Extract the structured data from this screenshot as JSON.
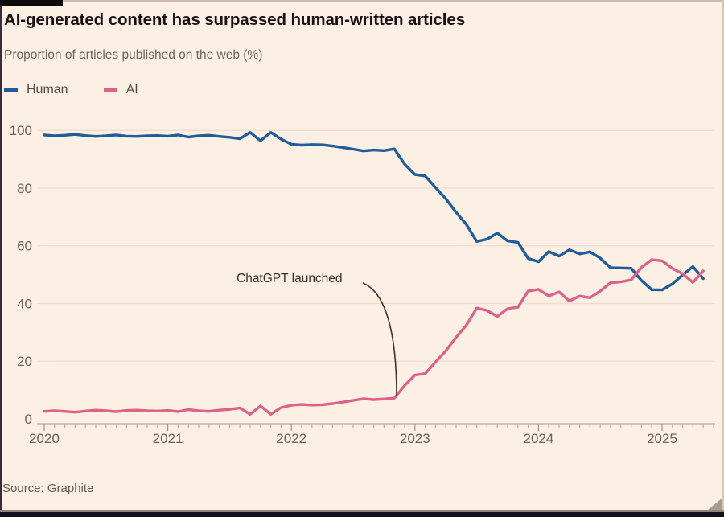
{
  "window": {
    "source_label": "Source: Graphite"
  },
  "header": {
    "title": "AI-generated content has surpassed human-written articles",
    "subtitle": "Proportion of articles published on the web (%)"
  },
  "legend": {
    "items": [
      {
        "label": "Human",
        "color": "#1f5c99"
      },
      {
        "label": "AI",
        "color": "#dd6289"
      }
    ]
  },
  "annotation": {
    "label": "ChatGPT launched"
  },
  "colors": {
    "background": "#fcefe3",
    "title_text": "#171113",
    "muted_text": "#6e6460",
    "tick_text": "#6e6157",
    "human_line": "#1f5c99",
    "ai_line": "#dd6289",
    "grid": "#f2dccf",
    "axis": "#bfa99b",
    "tick_minor": "#c4ad9e",
    "tick_major": "#a5907f",
    "annotation": "#3a332d",
    "bottom_bar": "#10131f"
  },
  "chart_data": {
    "type": "line",
    "title": "AI-generated content has surpassed human-written articles",
    "subtitle": "Proportion of articles published on the web (%)",
    "source": "Source: Graphite",
    "x_unit": "month",
    "xlabel": "",
    "ylabel": "Proportion of articles published on the web (%)",
    "ylim": [
      0,
      100
    ],
    "yticks": [
      0,
      20,
      40,
      60,
      80,
      100
    ],
    "xticks": [
      "2020",
      "2021",
      "2022",
      "2023",
      "2024",
      "2025"
    ],
    "grid": "horizontal-faint",
    "legend_position": "top-left",
    "x": [
      "2020-01",
      "2020-02",
      "2020-03",
      "2020-04",
      "2020-05",
      "2020-06",
      "2020-07",
      "2020-08",
      "2020-09",
      "2020-10",
      "2020-11",
      "2020-12",
      "2021-01",
      "2021-02",
      "2021-03",
      "2021-04",
      "2021-05",
      "2021-06",
      "2021-07",
      "2021-08",
      "2021-09",
      "2021-10",
      "2021-11",
      "2021-12",
      "2022-01",
      "2022-02",
      "2022-03",
      "2022-04",
      "2022-05",
      "2022-06",
      "2022-07",
      "2022-08",
      "2022-09",
      "2022-10",
      "2022-11",
      "2022-12",
      "2023-01",
      "2023-02",
      "2023-03",
      "2023-04",
      "2023-05",
      "2023-06",
      "2023-07",
      "2023-08",
      "2023-09",
      "2023-10",
      "2023-11",
      "2023-12",
      "2024-01",
      "2024-02",
      "2024-03",
      "2024-04",
      "2024-05",
      "2024-06",
      "2024-07",
      "2024-08",
      "2024-09",
      "2024-10",
      "2024-11",
      "2024-12",
      "2025-01",
      "2025-02",
      "2025-03",
      "2025-04",
      "2025-05"
    ],
    "series": [
      {
        "name": "Human",
        "color": "#1f5c99",
        "values": [
          98.4,
          98.1,
          98.3,
          98.6,
          98.2,
          97.9,
          98.1,
          98.4,
          98.0,
          97.9,
          98.1,
          98.2,
          98.0,
          98.4,
          97.7,
          98.1,
          98.3,
          97.9,
          97.6,
          97.1,
          99.3,
          96.4,
          99.3,
          97.0,
          95.2,
          94.9,
          95.1,
          95.0,
          94.6,
          94.1,
          93.5,
          92.9,
          93.2,
          93.0,
          93.6,
          88.3,
          84.7,
          84.2,
          80.2,
          76.3,
          71.6,
          67.4,
          61.5,
          62.3,
          64.4,
          61.7,
          61.2,
          55.6,
          54.5,
          58.0,
          56.4,
          58.6,
          57.2,
          57.9,
          55.7,
          52.4,
          52.3,
          52.2,
          48.0,
          44.8,
          44.7,
          46.8,
          49.9,
          52.8,
          48.6
        ]
      },
      {
        "name": "AI",
        "color": "#dd6289",
        "values": [
          2.6,
          2.8,
          2.6,
          2.3,
          2.7,
          3.0,
          2.8,
          2.5,
          2.9,
          3.0,
          2.8,
          2.7,
          2.9,
          2.5,
          3.2,
          2.8,
          2.6,
          3.0,
          3.3,
          3.8,
          1.6,
          4.5,
          1.6,
          3.9,
          4.7,
          5.0,
          4.8,
          4.9,
          5.3,
          5.8,
          6.4,
          7.0,
          6.7,
          6.9,
          7.2,
          11.6,
          15.2,
          15.7,
          19.7,
          23.6,
          28.3,
          32.5,
          38.4,
          37.6,
          35.5,
          38.2,
          38.7,
          44.3,
          44.9,
          42.6,
          44.0,
          40.9,
          42.6,
          42.0,
          44.3,
          47.2,
          47.5,
          48.2,
          52.5,
          55.2,
          54.8,
          52.2,
          50.3,
          47.3,
          51.3
        ]
      }
    ],
    "annotations": [
      {
        "text": "ChatGPT launched",
        "target_x": "2022-11",
        "target_y": 7.2
      }
    ]
  }
}
